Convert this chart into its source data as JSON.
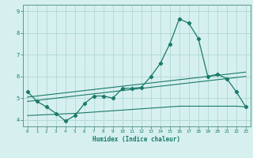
{
  "x": [
    0,
    1,
    2,
    3,
    4,
    5,
    6,
    7,
    8,
    9,
    10,
    11,
    12,
    13,
    14,
    15,
    16,
    17,
    18,
    19,
    20,
    21,
    22,
    23
  ],
  "line1": [
    5.3,
    4.85,
    4.6,
    4.3,
    3.95,
    4.2,
    4.75,
    5.1,
    5.1,
    5.0,
    5.45,
    5.45,
    5.5,
    6.0,
    6.6,
    7.5,
    8.65,
    8.45,
    7.75,
    6.0,
    6.1,
    5.9,
    5.3,
    4.6
  ],
  "line2_slope": [
    5.05,
    5.1,
    5.15,
    5.2,
    5.25,
    5.3,
    5.35,
    5.4,
    5.45,
    5.5,
    5.55,
    5.6,
    5.65,
    5.7,
    5.75,
    5.8,
    5.85,
    5.9,
    5.95,
    6.0,
    6.05,
    6.1,
    6.15,
    6.2
  ],
  "line3_slope": [
    4.85,
    4.9,
    4.95,
    5.0,
    5.05,
    5.1,
    5.15,
    5.2,
    5.25,
    5.3,
    5.35,
    5.4,
    5.45,
    5.5,
    5.55,
    5.6,
    5.65,
    5.7,
    5.75,
    5.8,
    5.85,
    5.9,
    5.95,
    6.0
  ],
  "line4": [
    4.2,
    4.22,
    4.24,
    4.26,
    4.28,
    4.3,
    4.33,
    4.36,
    4.39,
    4.42,
    4.45,
    4.48,
    4.51,
    4.54,
    4.57,
    4.6,
    4.63,
    4.63,
    4.63,
    4.63,
    4.63,
    4.63,
    4.63,
    4.6
  ],
  "color": "#1a7a6a",
  "bg_color": "#d6f0ef",
  "grid_color": "#b0d8d4",
  "xlabel": "Humidex (Indice chaleur)",
  "ylim": [
    3.7,
    9.3
  ],
  "xlim": [
    -0.5,
    23.5
  ]
}
